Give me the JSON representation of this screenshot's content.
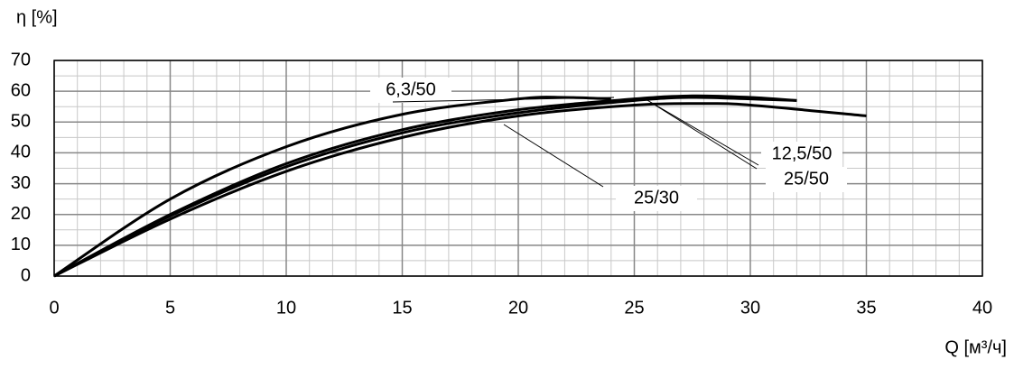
{
  "chart_data": {
    "type": "line",
    "ylabel": "η [%]",
    "xlabel": "Q [м³/ч]",
    "xlim": [
      0,
      40
    ],
    "xticks": [
      0,
      5,
      10,
      15,
      20,
      25,
      30,
      35,
      40
    ],
    "ylim": [
      0,
      70
    ],
    "yticks": [
      0,
      10,
      20,
      30,
      40,
      50,
      60,
      70
    ],
    "grid": true,
    "minor_grid": {
      "x": 1,
      "y": 5
    },
    "series": [
      {
        "name": "6,3/50",
        "color": "#000000",
        "x": [
          0,
          5,
          10,
          15,
          20,
          22,
          24
        ],
        "values": [
          0,
          25,
          42,
          52.5,
          57.5,
          58,
          57.5
        ]
      },
      {
        "name": "12,5/50",
        "color": "#000000",
        "x": [
          0,
          5,
          10,
          15,
          20,
          25,
          27.5,
          30,
          32
        ],
        "values": [
          0,
          20,
          36.5,
          47.5,
          54,
          57.5,
          58.5,
          58,
          57
        ]
      },
      {
        "name": "25/50",
        "color": "#000000",
        "x": [
          0,
          5,
          10,
          15,
          20,
          25,
          27.5,
          30,
          32
        ],
        "values": [
          0,
          19.5,
          35.5,
          46.5,
          53,
          57,
          58,
          57.5,
          57
        ]
      },
      {
        "name": "25/30",
        "color": "#000000",
        "x": [
          0,
          5,
          10,
          15,
          20,
          25,
          28,
          30,
          35
        ],
        "values": [
          0,
          18.5,
          34,
          45,
          52,
          55.5,
          56,
          55.5,
          52
        ]
      }
    ]
  }
}
